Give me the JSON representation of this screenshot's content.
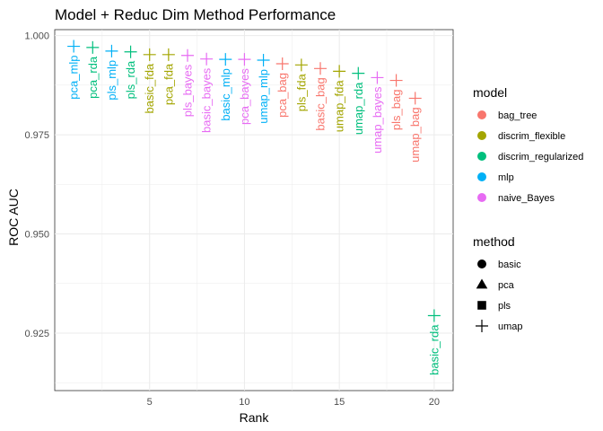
{
  "chart_data": {
    "type": "scatter",
    "title": "Model + Reduc Dim Method Performance",
    "xlabel": "Rank",
    "ylabel": "ROC AUC",
    "xlim": [
      0,
      21
    ],
    "ylim": [
      0.9105,
      1.0015
    ],
    "x_ticks": [
      5,
      10,
      15,
      20
    ],
    "y_ticks": [
      0.925,
      0.95,
      0.975,
      1.0
    ],
    "y_tick_labels": [
      "0.925",
      "0.950",
      "0.975",
      "1.000"
    ],
    "grid": true,
    "legend_position": "right",
    "legends": {
      "model": {
        "title": "model",
        "entries": [
          {
            "label": "bag_tree",
            "color": "#F8766D"
          },
          {
            "label": "discrim_flexible",
            "color": "#A3A500"
          },
          {
            "label": "discrim_regularized",
            "color": "#00BF7D"
          },
          {
            "label": "mlp",
            "color": "#00B0F6"
          },
          {
            "label": "naive_Bayes",
            "color": "#E76BF3"
          }
        ]
      },
      "method": {
        "title": "method",
        "entries": [
          {
            "label": "basic",
            "shape": "circle"
          },
          {
            "label": "pca",
            "shape": "triangle"
          },
          {
            "label": "pls",
            "shape": "square"
          },
          {
            "label": "umap",
            "shape": "plus"
          }
        ]
      }
    },
    "points": [
      {
        "x": 1,
        "y": 0.9973,
        "label": "pca_mlp",
        "model": "mlp",
        "method": "pca"
      },
      {
        "x": 2,
        "y": 0.997,
        "label": "pca_rda",
        "model": "discrim_regularized",
        "method": "pca"
      },
      {
        "x": 3,
        "y": 0.9961,
        "label": "pls_mlp",
        "model": "mlp",
        "method": "pls"
      },
      {
        "x": 4,
        "y": 0.9959,
        "label": "pls_rda",
        "model": "discrim_regularized",
        "method": "pls"
      },
      {
        "x": 5,
        "y": 0.9952,
        "label": "basic_fda",
        "model": "discrim_flexible",
        "method": "basic"
      },
      {
        "x": 6,
        "y": 0.9952,
        "label": "pca_fda",
        "model": "discrim_flexible",
        "method": "pca"
      },
      {
        "x": 7,
        "y": 0.995,
        "label": "pls_bayes",
        "model": "naive_Bayes",
        "method": "pls"
      },
      {
        "x": 8,
        "y": 0.9941,
        "label": "basic_bayes",
        "model": "naive_Bayes",
        "method": "basic"
      },
      {
        "x": 9,
        "y": 0.994,
        "label": "basic_mlp",
        "model": "mlp",
        "method": "basic"
      },
      {
        "x": 10,
        "y": 0.994,
        "label": "pca_bayes",
        "model": "naive_Bayes",
        "method": "pca"
      },
      {
        "x": 11,
        "y": 0.9938,
        "label": "umap_mlp",
        "model": "mlp",
        "method": "umap"
      },
      {
        "x": 12,
        "y": 0.9929,
        "label": "pca_bag",
        "model": "bag_tree",
        "method": "pca"
      },
      {
        "x": 13,
        "y": 0.9926,
        "label": "pls_fda",
        "model": "discrim_flexible",
        "method": "pls"
      },
      {
        "x": 14,
        "y": 0.9917,
        "label": "basic_bag",
        "model": "bag_tree",
        "method": "basic"
      },
      {
        "x": 15,
        "y": 0.991,
        "label": "umap_fda",
        "model": "discrim_flexible",
        "method": "umap"
      },
      {
        "x": 16,
        "y": 0.9905,
        "label": "umap_rda",
        "model": "discrim_regularized",
        "method": "umap"
      },
      {
        "x": 17,
        "y": 0.9894,
        "label": "umap_bayes",
        "model": "naive_Bayes",
        "method": "umap"
      },
      {
        "x": 18,
        "y": 0.9887,
        "label": "pls_bag",
        "model": "bag_tree",
        "method": "pls"
      },
      {
        "x": 19,
        "y": 0.9842,
        "label": "umap_bag",
        "model": "bag_tree",
        "method": "umap"
      },
      {
        "x": 20,
        "y": 0.9294,
        "label": "basic_rda",
        "model": "discrim_regularized",
        "method": "basic"
      }
    ]
  }
}
